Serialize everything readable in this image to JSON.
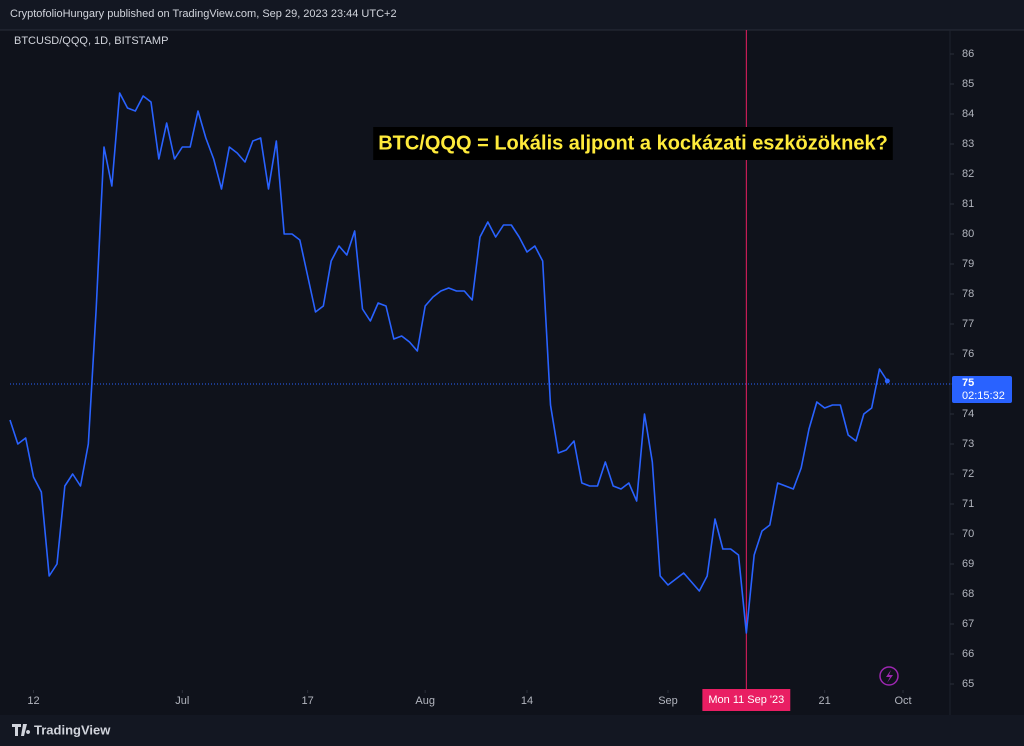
{
  "header": "CryptofolioHungary published on TradingView.com, Sep 29, 2023 23:44 UTC+2",
  "footer": "TradingView",
  "chart_data": {
    "type": "line",
    "annotation": "BTC/QQQ = Lokális aljpont a kockázati eszközöknek?",
    "x": [
      "2023-06-09",
      "2023-06-10",
      "2023-06-11",
      "2023-06-12",
      "2023-06-13",
      "2023-06-14",
      "2023-06-15",
      "2023-06-16",
      "2023-06-17",
      "2023-06-18",
      "2023-06-19",
      "2023-06-20",
      "2023-06-21",
      "2023-06-22",
      "2023-06-23",
      "2023-06-24",
      "2023-06-25",
      "2023-06-26",
      "2023-06-27",
      "2023-06-28",
      "2023-06-29",
      "2023-06-30",
      "2023-07-01",
      "2023-07-02",
      "2023-07-03",
      "2023-07-04",
      "2023-07-05",
      "2023-07-06",
      "2023-07-07",
      "2023-07-08",
      "2023-07-09",
      "2023-07-10",
      "2023-07-11",
      "2023-07-12",
      "2023-07-13",
      "2023-07-14",
      "2023-07-15",
      "2023-07-16",
      "2023-07-17",
      "2023-07-18",
      "2023-07-19",
      "2023-07-20",
      "2023-07-21",
      "2023-07-22",
      "2023-07-23",
      "2023-07-24",
      "2023-07-25",
      "2023-07-26",
      "2023-07-27",
      "2023-07-28",
      "2023-07-29",
      "2023-07-30",
      "2023-07-31",
      "2023-08-01",
      "2023-08-02",
      "2023-08-03",
      "2023-08-04",
      "2023-08-05",
      "2023-08-06",
      "2023-08-07",
      "2023-08-08",
      "2023-08-09",
      "2023-08-10",
      "2023-08-11",
      "2023-08-12",
      "2023-08-13",
      "2023-08-14",
      "2023-08-15",
      "2023-08-16",
      "2023-08-17",
      "2023-08-18",
      "2023-08-19",
      "2023-08-20",
      "2023-08-21",
      "2023-08-22",
      "2023-08-23",
      "2023-08-24",
      "2023-08-25",
      "2023-08-26",
      "2023-08-27",
      "2023-08-28",
      "2023-08-29",
      "2023-08-30",
      "2023-08-31",
      "2023-09-01",
      "2023-09-02",
      "2023-09-03",
      "2023-09-04",
      "2023-09-05",
      "2023-09-06",
      "2023-09-07",
      "2023-09-08",
      "2023-09-09",
      "2023-09-10",
      "2023-09-11",
      "2023-09-12",
      "2023-09-13",
      "2023-09-14",
      "2023-09-15",
      "2023-09-16",
      "2023-09-17",
      "2023-09-18",
      "2023-09-19",
      "2023-09-20",
      "2023-09-21",
      "2023-09-22",
      "2023-09-23",
      "2023-09-24",
      "2023-09-25",
      "2023-09-26",
      "2023-09-27",
      "2023-09-28",
      "2023-09-29"
    ],
    "series": [
      {
        "name": "BTCUSD/QQQ, 1D, BITSTAMP",
        "color": "#2962ff",
        "values": [
          73.8,
          73.0,
          73.2,
          71.9,
          71.4,
          68.6,
          69.0,
          71.6,
          72.0,
          71.6,
          73.0,
          77.5,
          82.9,
          81.6,
          84.7,
          84.2,
          84.1,
          84.6,
          84.4,
          82.5,
          83.7,
          82.5,
          82.9,
          82.9,
          84.1,
          83.2,
          82.5,
          81.5,
          82.9,
          82.7,
          82.4,
          83.1,
          83.2,
          81.5,
          83.1,
          80.0,
          80.0,
          79.8,
          78.6,
          77.4,
          77.6,
          79.1,
          79.6,
          79.3,
          80.1,
          77.5,
          77.1,
          77.7,
          77.6,
          76.5,
          76.6,
          76.4,
          76.1,
          77.6,
          77.9,
          78.1,
          78.2,
          78.1,
          78.1,
          77.8,
          79.9,
          80.4,
          79.9,
          80.3,
          80.3,
          79.9,
          79.4,
          79.6,
          79.1,
          74.3,
          72.7,
          72.8,
          73.1,
          71.7,
          71.6,
          71.6,
          72.4,
          71.6,
          71.5,
          71.7,
          71.1,
          74.0,
          72.4,
          68.6,
          68.3,
          68.5,
          68.7,
          68.4,
          68.1,
          68.6,
          70.5,
          69.5,
          69.5,
          69.3,
          66.7,
          69.3,
          70.1,
          70.3,
          71.7,
          71.6,
          71.5,
          72.2,
          73.5,
          74.4,
          74.2,
          74.3,
          74.3,
          73.3,
          73.1,
          74.0,
          74.2,
          75.5,
          75.1
        ]
      }
    ],
    "xlim": [
      "2023-06-09",
      "2023-10-07"
    ],
    "xticks": [
      {
        "value": "2023-06-12",
        "label": "12"
      },
      {
        "value": "2023-07-01",
        "label": "Jul"
      },
      {
        "value": "2023-07-17",
        "label": "17"
      },
      {
        "value": "2023-08-01",
        "label": "Aug"
      },
      {
        "value": "2023-08-14",
        "label": "14"
      },
      {
        "value": "2023-09-01",
        "label": "Sep"
      },
      {
        "value": "2023-09-21",
        "label": "21"
      },
      {
        "value": "2023-10-01",
        "label": "Oct"
      }
    ],
    "ylim": [
      64.8,
      86.8
    ],
    "yticks": [
      65,
      66,
      67,
      68,
      69,
      70,
      71,
      72,
      73,
      74,
      75,
      76,
      77,
      78,
      79,
      80,
      81,
      82,
      83,
      84,
      85,
      86
    ],
    "grid": false,
    "last_price": 75,
    "countdown": "02:15:32",
    "crosshair": {
      "x": "2023-09-11",
      "label": "Mon 11 Sep '23",
      "color": "#e91e63"
    }
  }
}
